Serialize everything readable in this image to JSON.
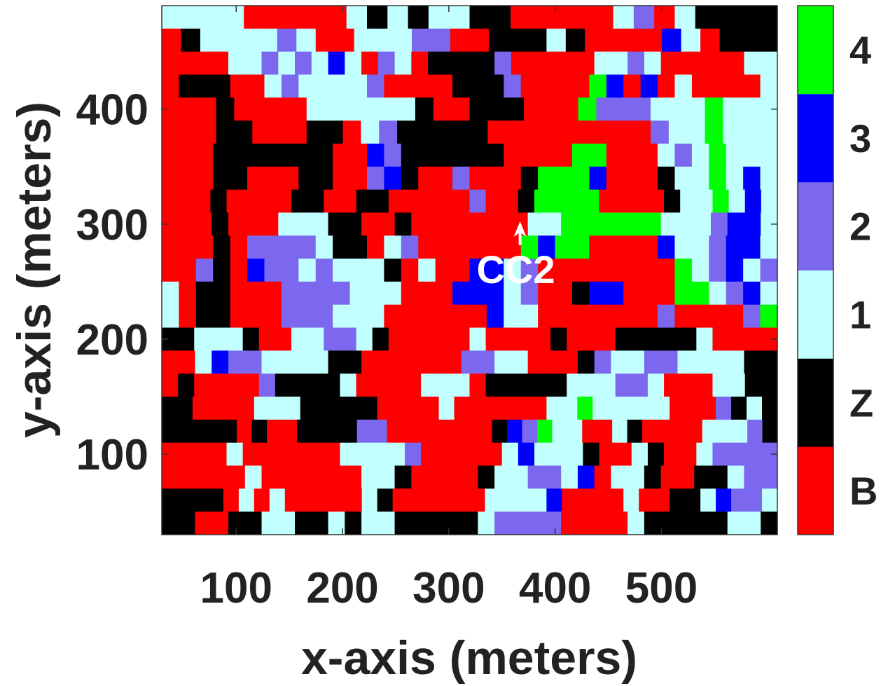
{
  "chart_data": {
    "type": "heatmap",
    "title": "",
    "xlabel": "x-axis (meters)",
    "ylabel": "y-axis (meters)",
    "x_range": [
      30,
      609
    ],
    "y_range": [
      30,
      490
    ],
    "x_ticks": [
      100,
      200,
      300,
      400,
      500
    ],
    "y_ticks": [
      100,
      200,
      300,
      400
    ],
    "grid": false,
    "colorbar": {
      "position": "right",
      "levels": [
        {
          "label": "B",
          "color": "#ff0000"
        },
        {
          "label": "Z",
          "color": "#000000"
        },
        {
          "label": "1",
          "color": "#c2ffff"
        },
        {
          "label": "2",
          "color": "#7b68ee"
        },
        {
          "label": "3",
          "color": "#0000ff"
        },
        {
          "label": "4",
          "color": "#00ff00"
        }
      ]
    },
    "legend_map": {
      ".": "1",
      "P": "2",
      "U": "3",
      "G": "4",
      "R": "B",
      "K": "Z"
    },
    "grid_rows_top_to_bottom": [
      "....RRRRR.K.K..KKRRRRR.PR.KKKK",
      "RK....P.RR...PPRRKKK.KRRRRU.RKKK",
      "RRRR..P.P.U.RP.RKKKKPRRRRR..P.RRRRR..",
      "RKKKRR.P....PRRRRKKKPRRRRGURUR.RRRR.",
      "RRRKRRRR......KRRKKKRRRGPPP...G...",
      "RRRKKRRRKKR.PKKKKKRRRRRRRRRP..G...",
      "RRRKKKKKKKRRUPKKKKKKRRRRGGRRR.P.G...",
      "RRRKKRRRKKRRPUKRRPRRRKGGGURRRK..G.U.",
      "RRRKRRRRKKRRKKRRRRRPRRKGGGGRRRRK..G.U.",
      "RRRKRRR...KKRRKRRRRRRR..GGGGGG...PUU.",
      "RRRKRPPPP.KKR.PRRRRRRGUGGRRRRU..PUU.",
      "RRPKRUPP.P...KR.RRUU.PRRRRRRRRG.PU.P",
      ".RKKRRRPPPP...RRRUUU.PRRKUURRRGG.PU.",
      ".RKKRRRPPP...RRRRRRU..RRRRRRRPRRRRPG",
      "KK...KRR..PP.KRRRRR.RRRRKRRRKKKKK.RRRR",
      "RR.UPP....KKRRRRRRPP..RRRKP..PP....KK",
      "RKRRRRPKKKK.RRRR...RKKKKK...PP.RRR..KK",
      "KKRRRR...KKKKKRRRR.RRRRRR..G.....RRRPK.K",
      "KKKKKRKRRKKKKPPRRRRRRRKUPG..RR.KRRRR...PK",
      "RRRR.RRRRRR....PRRRRR.U...KRR.KRR.PPPP",
      "RRRRR.RRRRRR..KRRRRK..PP.UR..KRRKK.PP",
      "KKKKR.R.RRRRR.KRRRRRR....URRRR.RRKK.UPP.",
      "KKRRKK..KK.K..KKKKK.PPPPRRRR.KKKKK..K"
    ],
    "annotations": [
      {
        "text": "CC2",
        "x": 363,
        "y": 250,
        "arrow_tip": [
          367,
          300
        ],
        "color": "#ffffff"
      }
    ]
  }
}
